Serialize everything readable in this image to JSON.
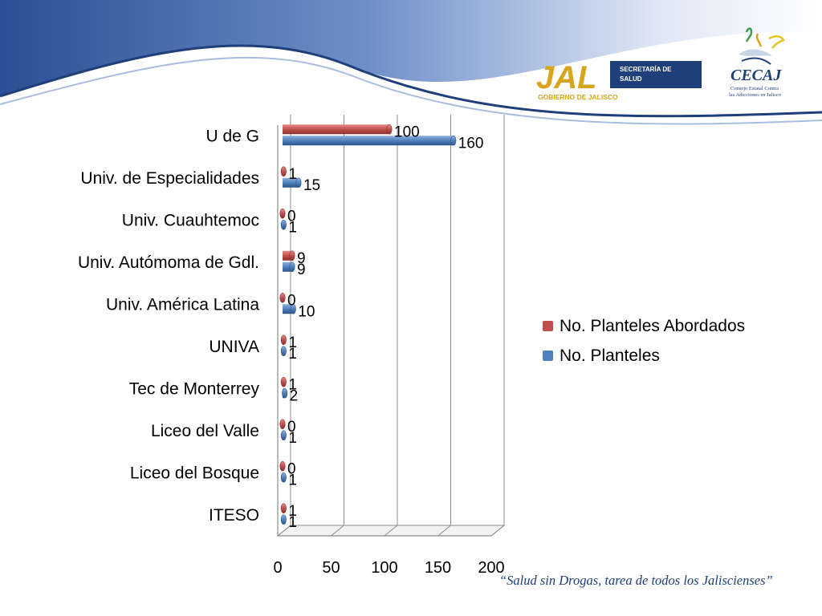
{
  "header": {
    "jal_logo_text": "JAL",
    "jal_secretaria": "SECRETARÍA DE",
    "jal_salud": "SALUD",
    "jal_gobierno": "GOBIERNO DE JALISCO",
    "cecaj_title": "CECAJ",
    "cecaj_sub1": "Consejo Estatal Contra",
    "cecaj_sub2": "las Adicciones en Jalisco"
  },
  "footer": {
    "slogan": "“Salud sin Drogas, tarea de todos los Jaliscienses”"
  },
  "colors": {
    "abordados": "#c0504d",
    "planteles": "#4f81bd",
    "header_blue": "#1f3f7a"
  },
  "chart_data": {
    "type": "bar",
    "orientation": "horizontal",
    "categories": [
      "U de G",
      "Univ. de Especialidades",
      "Univ. Cuauhtemoc",
      "Univ. Autómoma de Gdl.",
      "Univ. América Latina",
      "UNIVA",
      "Tec de Monterrey",
      "Liceo del Valle",
      "Liceo del Bosque",
      "ITESO"
    ],
    "series": [
      {
        "name": "No. Planteles Abordados",
        "values": [
          100,
          1,
          0,
          9,
          0,
          1,
          1,
          0,
          0,
          1
        ]
      },
      {
        "name": "No. Planteles",
        "values": [
          160,
          15,
          1,
          9,
          10,
          1,
          2,
          1,
          1,
          1
        ]
      }
    ],
    "xlim": [
      0,
      200
    ],
    "xticks": [
      "0",
      "50",
      "100",
      "150",
      "200"
    ],
    "grid": true,
    "legend_position": "right"
  }
}
